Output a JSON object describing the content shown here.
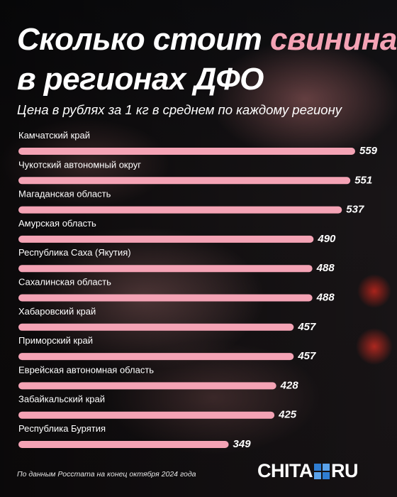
{
  "title": {
    "line1_prefix": "Сколько стоит ",
    "line1_accent": "свинина",
    "line2": "в регионах ДФО"
  },
  "subtitle": "Цена в рублях за 1 кг в среднем по каждому региону",
  "source": "По данным Росстата на конец октября 2024 года",
  "logo": {
    "left": "CHITA",
    "right": "RU",
    "icon": "chita-ru-logo-squares"
  },
  "colors": {
    "bar": "#f4a3b5",
    "accent_text": "#f4a3b5",
    "logo_blue": "#2f7dd1"
  },
  "chart_data": {
    "type": "bar",
    "orientation": "horizontal",
    "title": "Сколько стоит свинина в регионах ДФО",
    "subtitle": "Цена в рублях за 1 кг в среднем по каждому региону",
    "categories": [
      "Камчатский край",
      "Чукотский автономный округ",
      "Магаданская область",
      "Амурская область",
      "Республика Саха (Якутия)",
      "Сахалинская область",
      "Хабаровский край",
      "Приморский край",
      "Еврейская автономная область",
      "Забайкальский край",
      "Республика Бурятия"
    ],
    "values": [
      559,
      551,
      537,
      490,
      488,
      488,
      457,
      457,
      428,
      425,
      349
    ],
    "xlim": [
      0,
      559
    ],
    "grid": false,
    "legend": "none",
    "data_labels": true
  }
}
